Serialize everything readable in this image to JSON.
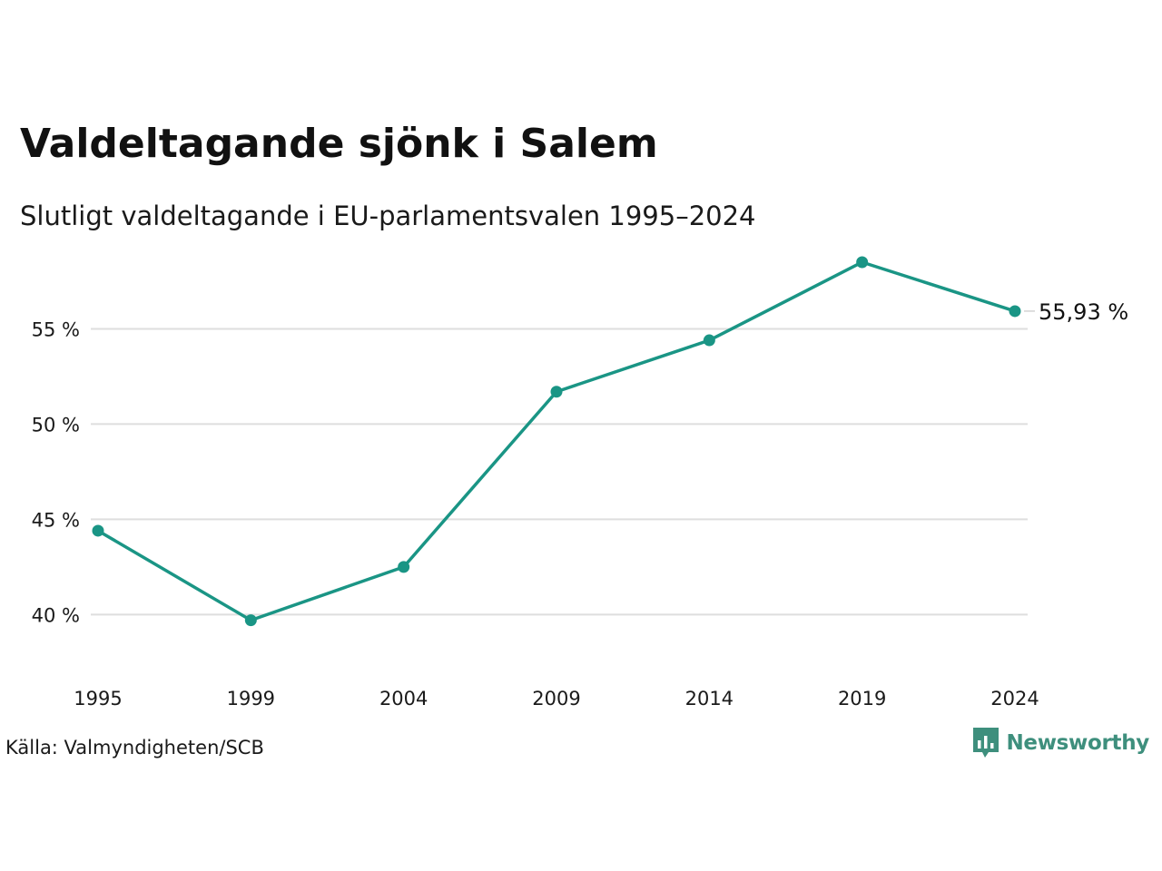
{
  "title": "Valdeltagande sjönk i Salem",
  "subtitle": "Slutligt valdeltagande i EU-parlamentsvalen 1995–2024",
  "source": "Källa: Valmyndigheten/SCB",
  "brand": {
    "name": "Newsworthy",
    "color": "#3e8f7d",
    "icon": "bar-chart-speech-bubble-icon"
  },
  "colors": {
    "line": "#1a9585",
    "grid": "#dedede",
    "text": "#111111"
  },
  "chart_data": {
    "type": "line",
    "title": "Valdeltagande sjönk i Salem",
    "subtitle": "Slutligt valdeltagande i EU-parlamentsvalen 1995–2024",
    "x": [
      "1995",
      "1999",
      "2004",
      "2009",
      "2014",
      "2019",
      "2024"
    ],
    "series": [
      {
        "values": [
          44.4,
          39.7,
          42.5,
          51.7,
          54.4,
          58.5,
          55.93
        ]
      }
    ],
    "unit": "%",
    "y_ticks": [
      40,
      45,
      50,
      55
    ],
    "y_tick_labels": [
      "40 %",
      "45 %",
      "50 %",
      "55 %"
    ],
    "ylim": [
      37.3,
      59.5
    ],
    "grid": "horizontal",
    "end_label": "55,93 %",
    "xlabel": "",
    "ylabel": ""
  }
}
